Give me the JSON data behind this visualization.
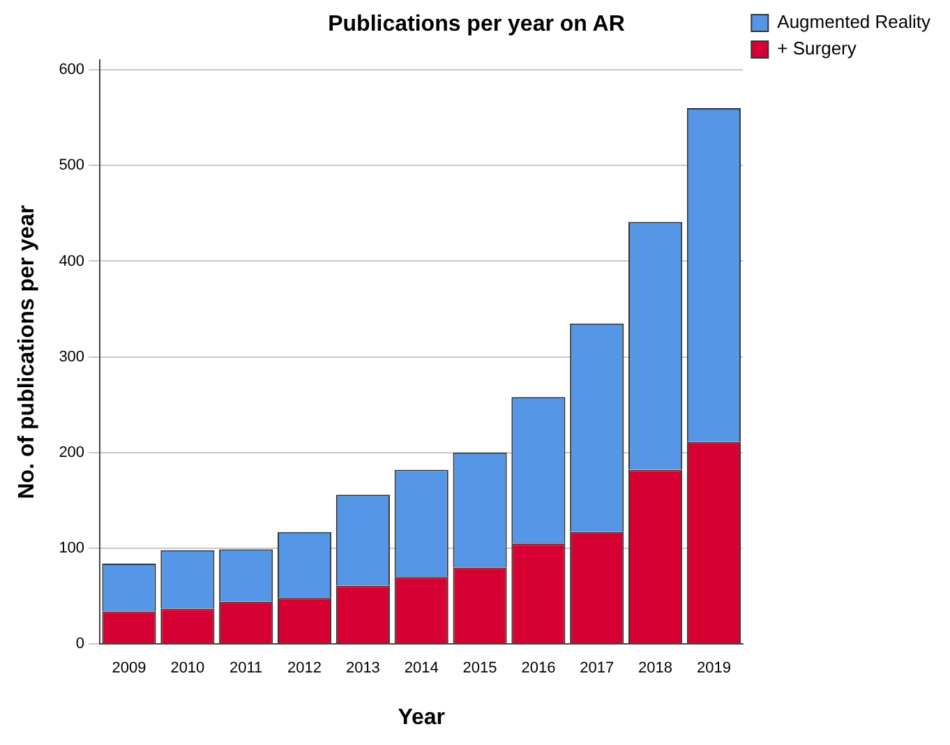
{
  "chart_data": {
    "type": "bar",
    "title": "Publications per year on AR",
    "xlabel": "Year",
    "ylabel": "No. of publications per year",
    "categories": [
      "2009",
      "2010",
      "2011",
      "2012",
      "2013",
      "2014",
      "2015",
      "2016",
      "2017",
      "2018",
      "2019"
    ],
    "stacked": true,
    "series": [
      {
        "name": "+ Surgery",
        "color": "#d70032",
        "values": [
          34,
          37,
          44,
          48,
          61,
          70,
          80,
          105,
          117,
          182,
          211
        ]
      },
      {
        "name": "Augmented Reality",
        "color": "#5596e6",
        "values": [
          50,
          61,
          55,
          69,
          95,
          112,
          120,
          153,
          218,
          259,
          349
        ]
      }
    ],
    "ylim": [
      0,
      610
    ],
    "yticks": [
      0,
      100,
      200,
      300,
      400,
      500,
      600
    ],
    "grid": "y",
    "legend": "top right"
  }
}
